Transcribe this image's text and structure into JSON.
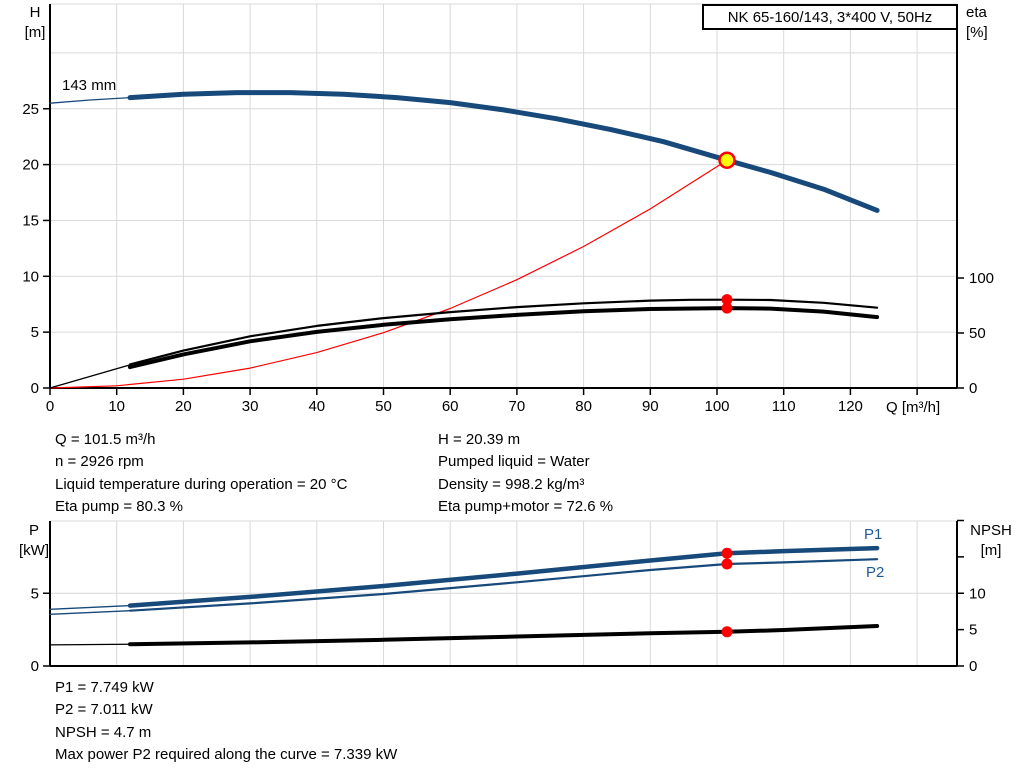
{
  "window": {
    "title": "NK 65-160/143, 3*400 V, 50Hz"
  },
  "colors": {
    "navy": "#17497B",
    "red": "#FF0000",
    "yellow": "#FFFF00",
    "black": "#000000",
    "grid": "#D9D9D9",
    "series_label_blue": "#1E5A96"
  },
  "axis_labels": {
    "upper_left_1": "H",
    "upper_left_2": "[m]",
    "upper_right_1": "eta",
    "upper_right_2": "[%]",
    "x": "Q [m³/h]",
    "lower_left_1": "P",
    "lower_left_2": "[kW]",
    "lower_right_1": "NPSH",
    "lower_right_2": "[m]"
  },
  "results_upper": {
    "left": [
      "Q = 101.5 m³/h",
      "n = 2926 rpm",
      "Liquid temperature during operation = 20 °C",
      "Eta pump = 80.3 %"
    ],
    "right": [
      "H = 20.39 m",
      "Pumped liquid = Water",
      "Density = 998.2 kg/m³",
      "Eta pump+motor = 72.6 %"
    ]
  },
  "results_lower": {
    "lines": [
      "P1 = 7.749 kW",
      "P2 = 7.011 kW",
      "NPSH = 4.7 m",
      "Max power P2 required along the curve = 7.339 kW"
    ]
  },
  "chart_data": [
    {
      "type": "line",
      "title": "NK 65-160/143, 3*400 V, 50Hz",
      "xlabel": "Q [m³/h]",
      "ylabel_left": "H [m]",
      "ylabel_right": "eta [%]",
      "xlim": [
        0,
        136
      ],
      "ylim_left": [
        0,
        34.4
      ],
      "ylim_right": [
        0,
        100
      ],
      "grid": true,
      "impeller_label": "143 mm",
      "x_ticks": [
        0,
        10,
        20,
        30,
        40,
        50,
        60,
        70,
        80,
        90,
        100,
        110,
        120
      ],
      "x_ticks_unlabeled": [
        130
      ],
      "y_ticks_left": [
        0,
        5,
        10,
        15,
        20,
        25
      ],
      "grid_y_left": [
        5,
        10,
        15,
        20,
        25,
        30
      ],
      "y_ticks_right": [
        0,
        50,
        100
      ],
      "series": [
        {
          "name": "head-curve-lead",
          "axis": "H",
          "color": "navy",
          "width": 1.3,
          "points": [
            [
              0,
              25.5
            ],
            [
              6,
              25.78
            ],
            [
              12,
              26.0
            ]
          ]
        },
        {
          "name": "head-curve",
          "axis": "H",
          "color": "navy",
          "width": 5,
          "points": [
            [
              12,
              26.0
            ],
            [
              20,
              26.3
            ],
            [
              28,
              26.45
            ],
            [
              36,
              26.45
            ],
            [
              44,
              26.3
            ],
            [
              52,
              26.0
            ],
            [
              60,
              25.55
            ],
            [
              68,
              24.9
            ],
            [
              76,
              24.1
            ],
            [
              84,
              23.15
            ],
            [
              92,
              22.05
            ],
            [
              101.5,
              20.39
            ],
            [
              108,
              19.3
            ],
            [
              116,
              17.8
            ],
            [
              124,
              15.9
            ]
          ]
        },
        {
          "name": "system-curve",
          "axis": "H",
          "color": "red",
          "width": 1.2,
          "points": [
            [
              0,
              0
            ],
            [
              10,
              0.2
            ],
            [
              20,
              0.79
            ],
            [
              30,
              1.78
            ],
            [
              40,
              3.17
            ],
            [
              50,
              4.95
            ],
            [
              60,
              7.12
            ],
            [
              70,
              9.7
            ],
            [
              80,
              12.67
            ],
            [
              90,
              16.03
            ],
            [
              101.5,
              20.39
            ]
          ]
        },
        {
          "name": "eta-curves-lead",
          "axis": "eta",
          "color": "black",
          "width": 1.3,
          "points": [
            [
              0,
              0
            ],
            [
              12,
              21
            ]
          ]
        },
        {
          "name": "eta-pump-curve",
          "axis": "eta",
          "color": "black",
          "width": 2.2,
          "points": [
            [
              12,
              21.5
            ],
            [
              20,
              34
            ],
            [
              30,
              47
            ],
            [
              40,
              56.5
            ],
            [
              50,
              63.5
            ],
            [
              60,
              69
            ],
            [
              70,
              73.5
            ],
            [
              80,
              77
            ],
            [
              90,
              79.5
            ],
            [
              96,
              80.2
            ],
            [
              101.5,
              80.3
            ],
            [
              108,
              80
            ],
            [
              116,
              77.5
            ],
            [
              124,
              73
            ]
          ]
        },
        {
          "name": "eta-pump-motor-curve",
          "axis": "eta",
          "color": "black",
          "width": 4,
          "points": [
            [
              12,
              19
            ],
            [
              20,
              30.5
            ],
            [
              30,
              42.5
            ],
            [
              40,
              51
            ],
            [
              50,
              57.5
            ],
            [
              60,
              62.5
            ],
            [
              70,
              66.5
            ],
            [
              80,
              69.7
            ],
            [
              90,
              71.8
            ],
            [
              101.5,
              72.6
            ],
            [
              108,
              72.2
            ],
            [
              116,
              69.5
            ],
            [
              124,
              64.5
            ]
          ]
        }
      ],
      "duty_point": {
        "q": 101.5,
        "h": 20.39
      },
      "eta_points": [
        {
          "q": 101.5,
          "eta": 80.3
        },
        {
          "q": 101.5,
          "eta": 72.6
        }
      ]
    },
    {
      "type": "line",
      "title": "",
      "xlabel": "",
      "ylabel_left": "P [kW]",
      "ylabel_right": "NPSH [m]",
      "xlim": [
        0,
        136
      ],
      "ylim_left": [
        0,
        10
      ],
      "ylim_right": [
        0,
        20
      ],
      "grid": true,
      "y_ticks_left": [
        0,
        5
      ],
      "grid_y_left": [
        5
      ],
      "y_ticks_right": [
        0,
        5,
        10
      ],
      "y_ticks_right_unlabeled": [
        15,
        20
      ],
      "series": [
        {
          "name": "p1-curve-lead",
          "axis": "P",
          "color": "navy",
          "width": 1.3,
          "points": [
            [
              0,
              3.9
            ],
            [
              12,
              4.15
            ]
          ]
        },
        {
          "name": "p1-curve",
          "axis": "P",
          "color": "navy",
          "width": 4.5,
          "points": [
            [
              12,
              4.15
            ],
            [
              30,
              4.75
            ],
            [
              50,
              5.5
            ],
            [
              70,
              6.35
            ],
            [
              90,
              7.25
            ],
            [
              101.5,
              7.749
            ],
            [
              110,
              7.9
            ],
            [
              124,
              8.1
            ]
          ]
        },
        {
          "name": "p2-curve-lead",
          "axis": "P",
          "color": "navy",
          "width": 1.3,
          "points": [
            [
              0,
              3.55
            ],
            [
              12,
              3.8
            ]
          ]
        },
        {
          "name": "p2-curve",
          "axis": "P",
          "color": "navy",
          "width": 2.2,
          "points": [
            [
              12,
              3.8
            ],
            [
              30,
              4.3
            ],
            [
              50,
              4.95
            ],
            [
              70,
              5.75
            ],
            [
              90,
              6.6
            ],
            [
              101.5,
              7.011
            ],
            [
              110,
              7.12
            ],
            [
              124,
              7.339
            ]
          ]
        },
        {
          "name": "npsh-curve-lead",
          "axis": "N",
          "color": "black",
          "width": 1.3,
          "points": [
            [
              0,
              2.9
            ],
            [
              12,
              3.0
            ]
          ]
        },
        {
          "name": "npsh-curve",
          "axis": "N",
          "color": "black",
          "width": 4,
          "points": [
            [
              12,
              3.0
            ],
            [
              30,
              3.25
            ],
            [
              50,
              3.6
            ],
            [
              70,
              4.05
            ],
            [
              90,
              4.5
            ],
            [
              101.5,
              4.7
            ],
            [
              110,
              4.95
            ],
            [
              124,
              5.5
            ]
          ]
        }
      ],
      "result_points": [
        {
          "q": 101.5,
          "axis": "P",
          "value": 7.749
        },
        {
          "q": 101.5,
          "axis": "P",
          "value": 7.011
        },
        {
          "q": 101.5,
          "axis": "N",
          "value": 4.7
        }
      ],
      "series_labels": [
        {
          "text": "P1"
        },
        {
          "text": "P2"
        }
      ]
    }
  ]
}
